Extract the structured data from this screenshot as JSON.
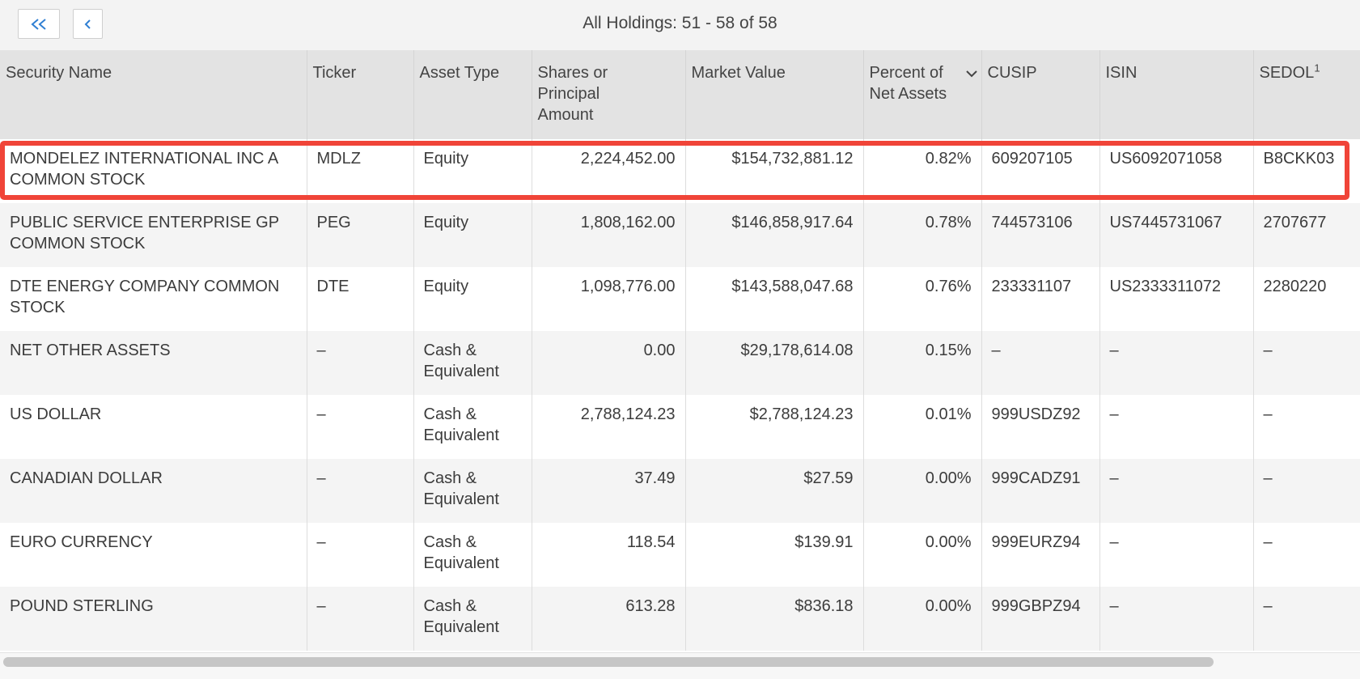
{
  "pagination": {
    "first_icon": "double-chevron-left-icon",
    "prev_icon": "chevron-left-icon",
    "label": "All Holdings: 51 - 58 of 58"
  },
  "table": {
    "headers": {
      "security_name": "Security Name",
      "ticker": "Ticker",
      "asset_type": "Asset Type",
      "shares": "Shares or Principal Amount",
      "market_value": "Market Value",
      "percent": "Percent of Net Assets",
      "cusip": "CUSIP",
      "isin": "ISIN",
      "sedol": "SEDOL",
      "sedol_footnote": "1"
    },
    "sort_icon": "chevron-down-icon",
    "rows": [
      {
        "name": "MONDELEZ INTERNATIONAL INC A COMMON STOCK",
        "ticker": "MDLZ",
        "asset_type": "Equity",
        "shares": "2,224,452.00",
        "market_value": "$154,732,881.12",
        "percent": "0.82%",
        "cusip": "609207105",
        "isin": "US6092071058",
        "sedol": "B8CKK03"
      },
      {
        "name": "PUBLIC SERVICE ENTERPRISE GP COMMON STOCK",
        "ticker": "PEG",
        "asset_type": "Equity",
        "shares": "1,808,162.00",
        "market_value": "$146,858,917.64",
        "percent": "0.78%",
        "cusip": "744573106",
        "isin": "US7445731067",
        "sedol": "2707677"
      },
      {
        "name": "DTE ENERGY COMPANY COMMON STOCK",
        "ticker": "DTE",
        "asset_type": "Equity",
        "shares": "1,098,776.00",
        "market_value": "$143,588,047.68",
        "percent": "0.76%",
        "cusip": "233331107",
        "isin": "US2333311072",
        "sedol": "2280220"
      },
      {
        "name": "NET OTHER ASSETS",
        "ticker": "–",
        "asset_type": "Cash & Equivalent",
        "shares": "0.00",
        "market_value": "$29,178,614.08",
        "percent": "0.15%",
        "cusip": "–",
        "isin": "–",
        "sedol": "–"
      },
      {
        "name": "US DOLLAR",
        "ticker": "–",
        "asset_type": "Cash & Equivalent",
        "shares": "2,788,124.23",
        "market_value": "$2,788,124.23",
        "percent": "0.01%",
        "cusip": "999USDZ92",
        "isin": "–",
        "sedol": "–"
      },
      {
        "name": "CANADIAN DOLLAR",
        "ticker": "–",
        "asset_type": "Cash & Equivalent",
        "shares": "37.49",
        "market_value": "$27.59",
        "percent": "0.00%",
        "cusip": "999CADZ91",
        "isin": "–",
        "sedol": "–"
      },
      {
        "name": "EURO CURRENCY",
        "ticker": "–",
        "asset_type": "Cash & Equivalent",
        "shares": "118.54",
        "market_value": "$139.91",
        "percent": "0.00%",
        "cusip": "999EURZ94",
        "isin": "–",
        "sedol": "–"
      },
      {
        "name": "POUND STERLING",
        "ticker": "–",
        "asset_type": "Cash & Equivalent",
        "shares": "613.28",
        "market_value": "$836.18",
        "percent": "0.00%",
        "cusip": "999GBPZ94",
        "isin": "–",
        "sedol": "–"
      }
    ],
    "highlighted_row": 0
  },
  "colors": {
    "accent": "#2f7fd3",
    "highlight": "#f04438",
    "header_bg": "#e3e3e3",
    "stripe_bg": "#f4f4f4"
  }
}
